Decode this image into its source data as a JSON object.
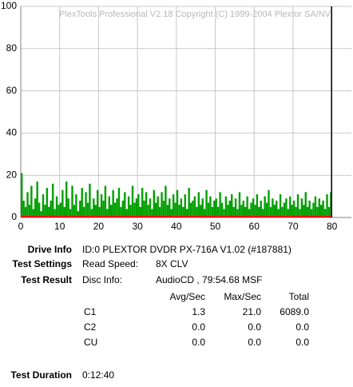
{
  "chart_data": {
    "type": "bar",
    "annotation": "PlexTools Professional V2.18 Copyright (C) 1999-2004 Plextor SA/NV",
    "xlim": [
      0,
      85
    ],
    "ylim": [
      0,
      100
    ],
    "xticks": [
      0,
      10,
      20,
      30,
      40,
      50,
      60,
      70,
      80
    ],
    "yticks": [
      0,
      20,
      40,
      60,
      80,
      100
    ],
    "grid": true,
    "end_marker": 79.9,
    "series": [
      {
        "color": "#00a000",
        "x": [
          0,
          0.5,
          1,
          1.5,
          2,
          2.5,
          3,
          3.5,
          4,
          4.5,
          5,
          5.5,
          6,
          6.5,
          7,
          7.5,
          8,
          8.5,
          9,
          9.5,
          10,
          10.5,
          11,
          11.5,
          12,
          12.5,
          13,
          13.5,
          14,
          14.5,
          15,
          15.5,
          16,
          16.5,
          17,
          17.5,
          18,
          18.5,
          19,
          19.5,
          20,
          20.5,
          21,
          21.5,
          22,
          22.5,
          23,
          23.5,
          24,
          24.5,
          25,
          25.5,
          26,
          26.5,
          27,
          27.5,
          28,
          28.5,
          29,
          29.5,
          30,
          30.5,
          31,
          31.5,
          32,
          32.5,
          33,
          33.5,
          34,
          34.5,
          35,
          35.5,
          36,
          36.5,
          37,
          37.5,
          38,
          38.5,
          39,
          39.5,
          40,
          40.5,
          41,
          41.5,
          42,
          42.5,
          43,
          43.5,
          44,
          44.5,
          45,
          45.5,
          46,
          46.5,
          47,
          47.5,
          48,
          48.5,
          49,
          49.5,
          50,
          50.5,
          51,
          51.5,
          52,
          52.5,
          53,
          53.5,
          54,
          54.5,
          55,
          55.5,
          56,
          56.5,
          57,
          57.5,
          58,
          58.5,
          59,
          59.5,
          60,
          60.5,
          61,
          61.5,
          62,
          62.5,
          63,
          63.5,
          64,
          64.5,
          65,
          65.5,
          66,
          66.5,
          67,
          67.5,
          68,
          68.5,
          69,
          69.5,
          70,
          70.5,
          71,
          71.5,
          72,
          72.5,
          73,
          73.5,
          74,
          74.5,
          75,
          75.5,
          76,
          76.5,
          77,
          77.5,
          78,
          78.5,
          79,
          79.5
        ],
        "values": [
          21,
          8,
          5,
          12,
          6,
          15,
          4,
          9,
          17,
          7,
          3,
          11,
          6,
          14,
          5,
          8,
          16,
          4,
          10,
          6,
          7,
          13,
          5,
          17,
          9,
          4,
          15,
          6,
          11,
          3,
          8,
          14,
          5,
          12,
          7,
          16,
          4,
          9,
          6,
          13,
          5,
          11,
          8,
          15,
          4,
          10,
          6,
          13,
          7,
          9,
          14,
          5,
          8,
          12,
          4,
          10,
          6,
          15,
          7,
          9,
          11,
          5,
          14,
          8,
          12,
          6,
          9,
          4,
          13,
          7,
          10,
          5,
          12,
          8,
          15,
          6,
          9,
          4,
          11,
          7,
          13,
          6,
          9,
          5,
          11,
          4,
          14,
          7,
          8,
          10,
          5,
          12,
          6,
          9,
          4,
          13,
          7,
          10,
          5,
          8,
          9,
          5,
          12,
          7,
          4,
          10,
          6,
          8,
          11,
          5,
          9,
          4,
          12,
          6,
          8,
          5,
          10,
          4,
          7,
          9,
          6,
          11,
          5,
          8,
          4,
          10,
          7,
          13,
          5,
          9,
          6,
          8,
          4,
          11,
          5,
          7,
          9,
          4,
          10,
          6,
          8,
          5,
          11,
          4,
          9,
          6,
          12,
          5,
          8,
          4,
          7,
          10,
          5,
          9,
          6,
          8,
          4,
          11,
          5,
          12
        ]
      },
      {
        "color": "#ff0000",
        "x": [
          0,
          79.9
        ],
        "values": [
          0,
          0
        ]
      }
    ]
  },
  "info": {
    "drive_label": "Drive Info",
    "drive_value": "ID:0 PLEXTOR DVDR PX-716A V1.02 (#187881)",
    "settings_label": "Test Settings",
    "speed_label": "Read Speed:",
    "speed_value": "8X CLV",
    "result_label": "Test Result",
    "disc_label": "Disc Info:",
    "disc_value": "AudioCD , 79:54.68 MSF",
    "table": {
      "headers": [
        "Avg/Sec",
        "Max/Sec",
        "Total"
      ],
      "rows": [
        [
          "C1",
          "1.3",
          "21.0",
          "6089.0"
        ],
        [
          "C2",
          "0.0",
          "0.0",
          "0.0"
        ],
        [
          "CU",
          "0.0",
          "0.0",
          "0.0"
        ]
      ]
    },
    "duration_label": "Test Duration",
    "duration_value": "0:12:40"
  }
}
